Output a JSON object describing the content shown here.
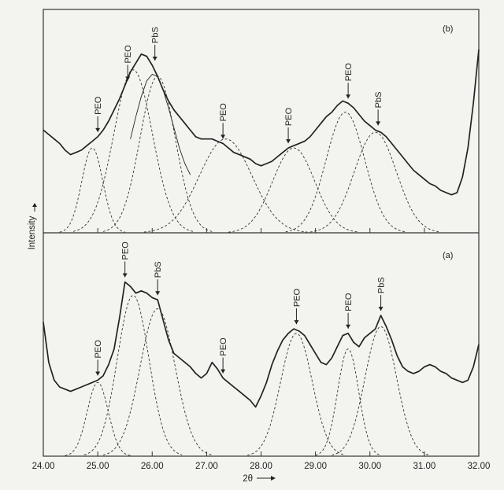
{
  "chart_data": {
    "type": "line",
    "title": "",
    "xlabel": "2θ",
    "ylabel": "Intensity",
    "xlim": [
      24.0,
      32.0
    ],
    "x_ticks": [
      "24.00",
      "25.00",
      "26.00",
      "27.00",
      "28.00",
      "29.00",
      "30.00",
      "31.00",
      "32.00"
    ],
    "panels": [
      {
        "label": "(b)",
        "position": "top",
        "ylim": [
          0,
          100
        ],
        "series": [
          {
            "name": "measured",
            "style": "solid",
            "x": [
              24.0,
              24.1,
              24.2,
              24.3,
              24.4,
              24.5,
              24.6,
              24.7,
              24.8,
              24.9,
              25.0,
              25.1,
              25.2,
              25.3,
              25.4,
              25.5,
              25.6,
              25.7,
              25.8,
              25.9,
              26.0,
              26.1,
              26.2,
              26.3,
              26.4,
              26.5,
              26.6,
              26.7,
              26.8,
              26.9,
              27.0,
              27.1,
              27.2,
              27.3,
              27.4,
              27.5,
              27.6,
              27.7,
              27.8,
              27.9,
              28.0,
              28.1,
              28.2,
              28.3,
              28.4,
              28.5,
              28.6,
              28.7,
              28.8,
              28.9,
              29.0,
              29.1,
              29.2,
              29.3,
              29.4,
              29.5,
              29.6,
              29.7,
              29.8,
              29.9,
              30.0,
              30.1,
              30.2,
              30.3,
              30.4,
              30.5,
              30.6,
              30.7,
              30.8,
              30.9,
              31.0,
              31.1,
              31.2,
              31.3,
              31.4,
              31.5,
              31.6,
              31.7,
              31.8,
              31.9,
              32.0
            ],
            "y": [
              46,
              44,
              42,
              40,
              37,
              35,
              36,
              37,
              39,
              41,
              43,
              46,
              50,
              55,
              60,
              66,
              72,
              76,
              80,
              79,
              75,
              70,
              64,
              59,
              55,
              52,
              49,
              46,
              43,
              42,
              42,
              42,
              41,
              40,
              38,
              36,
              35,
              34,
              33,
              31,
              30,
              31,
              32,
              34,
              36,
              38,
              39,
              40,
              41,
              43,
              46,
              49,
              52,
              54,
              57,
              59,
              58,
              56,
              53,
              50,
              48,
              46,
              45,
              43,
              40,
              37,
              34,
              31,
              28,
              26,
              24,
              22,
              21,
              19,
              18,
              17,
              18,
              25,
              38,
              58,
              82
            ]
          },
          {
            "name": "PbS fit",
            "style": "thin",
            "x": [
              25.6,
              25.7,
              25.8,
              25.9,
              26.0,
              26.1,
              26.2,
              26.3,
              26.4,
              26.5,
              26.6,
              26.7
            ],
            "y": [
              42,
              52,
              61,
              68,
              71,
              70,
              64,
              56,
              47,
              38,
              31,
              26
            ]
          }
        ],
        "fit_components": [
          {
            "center": 24.9,
            "height": 38,
            "width": 0.3
          },
          {
            "center": 25.65,
            "height": 73,
            "width": 0.55
          },
          {
            "center": 26.1,
            "height": 70,
            "width": 0.5
          },
          {
            "center": 27.35,
            "height": 42,
            "width": 0.75
          },
          {
            "center": 28.6,
            "height": 38,
            "width": 0.6
          },
          {
            "center": 29.55,
            "height": 54,
            "width": 0.55
          },
          {
            "center": 30.1,
            "height": 45,
            "width": 0.6
          }
        ],
        "annotations": [
          {
            "label": "PEO",
            "x": 25.0
          },
          {
            "label": "PEO",
            "x": 25.55
          },
          {
            "label": "PbS",
            "x": 26.05
          },
          {
            "label": "PEO",
            "x": 27.3
          },
          {
            "label": "PEO",
            "x": 28.5
          },
          {
            "label": "PEO",
            "x": 29.6
          },
          {
            "label": "PbS",
            "x": 30.15
          }
        ]
      },
      {
        "label": "(a)",
        "position": "bottom",
        "ylim": [
          0,
          100
        ],
        "series": [
          {
            "name": "measured",
            "style": "solid",
            "x": [
              24.0,
              24.1,
              24.2,
              24.3,
              24.4,
              24.5,
              24.6,
              24.7,
              24.8,
              24.9,
              25.0,
              25.1,
              25.2,
              25.3,
              25.4,
              25.5,
              25.6,
              25.7,
              25.8,
              25.9,
              26.0,
              26.1,
              26.2,
              26.3,
              26.4,
              26.5,
              26.6,
              26.7,
              26.8,
              26.9,
              27.0,
              27.1,
              27.2,
              27.3,
              27.4,
              27.5,
              27.6,
              27.7,
              27.8,
              27.9,
              28.0,
              28.1,
              28.2,
              28.3,
              28.4,
              28.5,
              28.6,
              28.7,
              28.8,
              28.9,
              29.0,
              29.1,
              29.2,
              29.3,
              29.4,
              29.5,
              29.6,
              29.7,
              29.8,
              29.9,
              30.0,
              30.1,
              30.2,
              30.3,
              30.4,
              30.5,
              30.6,
              30.7,
              30.8,
              30.9,
              31.0,
              31.1,
              31.2,
              31.3,
              31.4,
              31.5,
              31.6,
              31.7,
              31.8,
              31.9,
              32.0
            ],
            "y": [
              60,
              42,
              34,
              31,
              30,
              29,
              30,
              31,
              32,
              33,
              34,
              36,
              41,
              48,
              62,
              78,
              76,
              73,
              74,
              73,
              71,
              70,
              61,
              52,
              46,
              44,
              42,
              40,
              37,
              35,
              37,
              42,
              39,
              35,
              33,
              31,
              29,
              27,
              25,
              22,
              27,
              33,
              41,
              47,
              52,
              55,
              57,
              56,
              54,
              50,
              46,
              42,
              41,
              44,
              49,
              54,
              55,
              51,
              49,
              53,
              55,
              57,
              63,
              58,
              52,
              45,
              40,
              38,
              37,
              38,
              40,
              41,
              40,
              38,
              37,
              35,
              34,
              33,
              34,
              40,
              50
            ]
          }
        ],
        "fit_components": [
          {
            "center": 25.0,
            "height": 33,
            "width": 0.3
          },
          {
            "center": 25.65,
            "height": 72,
            "width": 0.45
          },
          {
            "center": 26.1,
            "height": 66,
            "width": 0.5
          },
          {
            "center": 28.65,
            "height": 55,
            "width": 0.45
          },
          {
            "center": 29.6,
            "height": 48,
            "width": 0.3
          },
          {
            "center": 30.2,
            "height": 58,
            "width": 0.45
          }
        ],
        "annotations": [
          {
            "label": "PEO",
            "x": 25.0
          },
          {
            "label": "PEO",
            "x": 25.5
          },
          {
            "label": "PbS",
            "x": 26.1
          },
          {
            "label": "PEO",
            "x": 27.3
          },
          {
            "label": "PEO",
            "x": 28.65
          },
          {
            "label": "PEO",
            "x": 29.6
          },
          {
            "label": "PbS",
            "x": 30.2
          }
        ]
      }
    ]
  }
}
